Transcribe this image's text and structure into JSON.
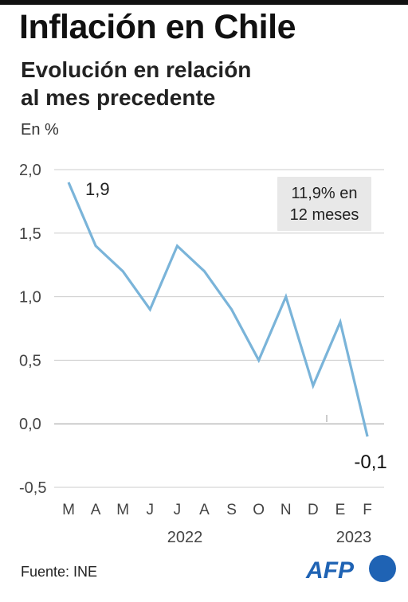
{
  "header": {
    "title": "Inflación en Chile",
    "subtitle_line1": "Evolución en relación",
    "subtitle_line2": "al mes precedente",
    "unit": "En %"
  },
  "annotation": {
    "line1": "11,9% en",
    "line2": "12 meses"
  },
  "footer": {
    "source": "Fuente: INE",
    "logo_text": "AFP"
  },
  "colors": {
    "line": "#7ab4d9",
    "grid": "#cccccc",
    "annotation_bg": "#e8e8e8",
    "logo_blue": "#1f63b4"
  },
  "chart_data": {
    "type": "line",
    "title": "Inflación en Chile",
    "subtitle": "Evolución en relación al mes precedente",
    "ylabel": "En %",
    "ylim": [
      -0.5,
      2.0
    ],
    "y_ticks": [
      2.0,
      1.5,
      1.0,
      0.5,
      0.0,
      -0.5
    ],
    "y_tick_labels": [
      "2,0",
      "1,5",
      "1,0",
      "0,5",
      "0,0",
      "-0,5"
    ],
    "categories": [
      "M",
      "A",
      "M",
      "J",
      "J",
      "A",
      "S",
      "O",
      "N",
      "D",
      "E",
      "F"
    ],
    "year_labels": [
      {
        "label": "2022",
        "span": [
          0,
          9
        ]
      },
      {
        "label": "2023",
        "span": [
          10,
          11
        ]
      }
    ],
    "series": [
      {
        "values": [
          1.9,
          1.4,
          1.2,
          0.9,
          1.4,
          1.2,
          0.9,
          0.5,
          1.0,
          0.3,
          0.8,
          -0.1
        ]
      }
    ],
    "data_labels": [
      {
        "index": 0,
        "text": "1,9"
      },
      {
        "index": 11,
        "text": "-0,1"
      }
    ],
    "grid": true
  }
}
